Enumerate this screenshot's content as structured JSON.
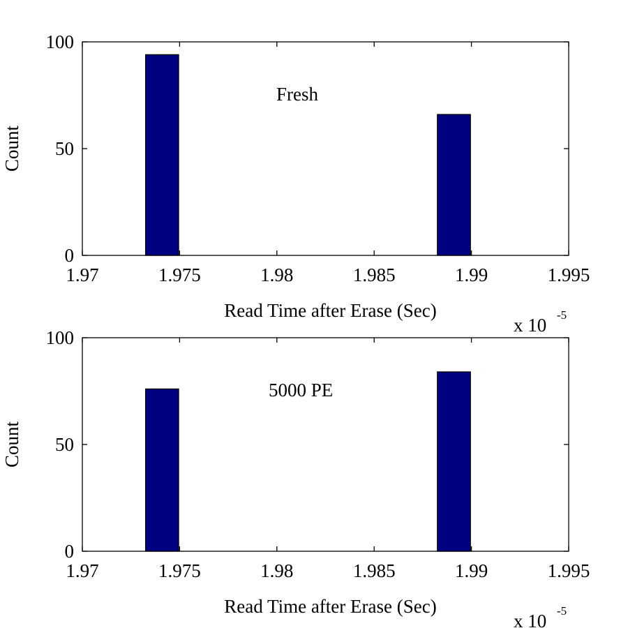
{
  "chart_data": [
    {
      "type": "bar",
      "annotation": "Fresh",
      "xlabel": "Read Time after Erase (Sec)",
      "ylabel": "Count",
      "x_exponent": {
        "base": "x 10",
        "power": "-5"
      },
      "xlim": [
        1.97,
        1.995
      ],
      "ylim": [
        0,
        100
      ],
      "xticks": [
        "1.97",
        "1.975",
        "1.98",
        "1.985",
        "1.99",
        "1.995"
      ],
      "yticks": [
        "0",
        "50",
        "100"
      ],
      "bar_color": "#000080",
      "bars": [
        {
          "x": 1.9741,
          "value": 94
        },
        {
          "x": 1.9891,
          "value": 66
        }
      ],
      "bar_width": 0.0017,
      "grid": false
    },
    {
      "type": "bar",
      "annotation": "5000 PE",
      "xlabel": "Read Time after Erase (Sec)",
      "ylabel": "Count",
      "x_exponent": {
        "base": "x 10",
        "power": "-5"
      },
      "xlim": [
        1.97,
        1.995
      ],
      "ylim": [
        0,
        100
      ],
      "xticks": [
        "1.97",
        "1.975",
        "1.98",
        "1.985",
        "1.99",
        "1.995"
      ],
      "yticks": [
        "0",
        "50",
        "100"
      ],
      "bar_color": "#000080",
      "bars": [
        {
          "x": 1.9741,
          "value": 76
        },
        {
          "x": 1.9891,
          "value": 84
        }
      ],
      "bar_width": 0.0017,
      "grid": false
    }
  ]
}
